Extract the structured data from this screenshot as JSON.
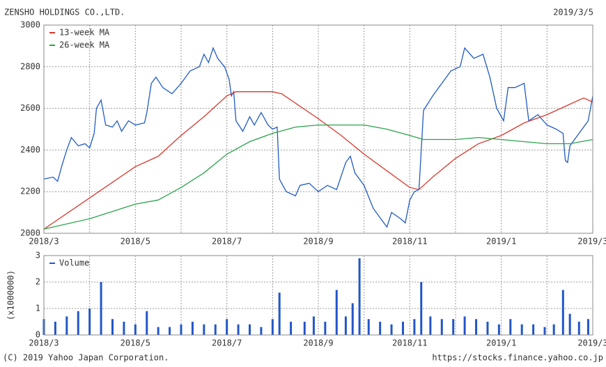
{
  "chart_data": [
    {
      "type": "line",
      "title": "ZENSHO HOLDINGS CO.,LTD.",
      "date": "2019/3/5",
      "xlim": [
        0,
        12
      ],
      "xticks": [
        {
          "value": 0,
          "label": "2018/3"
        },
        {
          "value": 2,
          "label": "2018/5"
        },
        {
          "value": 4,
          "label": "2018/7"
        },
        {
          "value": 6,
          "label": "2018/9"
        },
        {
          "value": 8,
          "label": "2018/11"
        },
        {
          "value": 10,
          "label": "2019/1"
        },
        {
          "value": 12,
          "label": "2019/3"
        }
      ],
      "ylim": [
        2000,
        3000
      ],
      "yticks": [
        2000,
        2200,
        2400,
        2600,
        2800,
        3000
      ],
      "grid": true,
      "legend": "top-left",
      "series": [
        {
          "color": "#1f5bc0",
          "x": [
            0,
            0.2,
            0.3,
            0.4,
            0.5,
            0.6,
            0.75,
            0.9,
            1.0,
            1.1,
            1.15,
            1.25,
            1.35,
            1.5,
            1.6,
            1.7,
            1.85,
            2.0,
            2.2,
            2.25,
            2.35,
            2.45,
            2.6,
            2.8,
            3.0,
            3.2,
            3.4,
            3.5,
            3.6,
            3.7,
            3.8,
            3.95,
            4.05,
            4.1,
            4.15,
            4.2,
            4.35,
            4.5,
            4.6,
            4.75,
            4.9,
            5.0,
            5.1,
            5.15,
            5.3,
            5.5,
            5.6,
            5.8,
            6.0,
            6.2,
            6.4,
            6.6,
            6.7,
            6.8,
            7.0,
            7.2,
            7.4,
            7.5,
            7.6,
            7.8,
            7.9,
            8.0,
            8.1,
            8.2,
            8.3,
            8.5,
            8.7,
            8.9,
            9.1,
            9.2,
            9.4,
            9.6,
            9.75,
            9.9,
            10.05,
            10.15,
            10.3,
            10.5,
            10.6,
            10.8,
            11.0,
            11.2,
            11.35,
            11.4,
            11.45,
            11.5,
            11.7,
            11.9,
            12.0
          ],
          "values": [
            2260,
            2270,
            2250,
            2330,
            2400,
            2460,
            2420,
            2430,
            2410,
            2480,
            2600,
            2640,
            2520,
            2510,
            2540,
            2490,
            2540,
            2520,
            2530,
            2580,
            2720,
            2750,
            2700,
            2670,
            2720,
            2780,
            2800,
            2860,
            2820,
            2890,
            2840,
            2800,
            2740,
            2660,
            2680,
            2540,
            2490,
            2560,
            2520,
            2580,
            2520,
            2500,
            2510,
            2260,
            2200,
            2180,
            2230,
            2240,
            2200,
            2230,
            2210,
            2340,
            2370,
            2290,
            2230,
            2120,
            2060,
            2030,
            2100,
            2070,
            2050,
            2160,
            2200,
            2210,
            2590,
            2660,
            2720,
            2780,
            2800,
            2890,
            2840,
            2860,
            2750,
            2600,
            2540,
            2700,
            2700,
            2720,
            2540,
            2570,
            2520,
            2500,
            2480,
            2350,
            2340,
            2420,
            2480,
            2540,
            2660
          ]
        },
        {
          "name": "13-week MA",
          "color": "#d8372c",
          "x": [
            0,
            1,
            2,
            2.5,
            3,
            3.5,
            4,
            4.2,
            5,
            5.2,
            6,
            6.5,
            7,
            7.5,
            8,
            8.2,
            8.5,
            9,
            9.5,
            10,
            10.5,
            11,
            11.5,
            11.8,
            12
          ],
          "values": [
            2020,
            2170,
            2320,
            2370,
            2470,
            2560,
            2660,
            2680,
            2680,
            2670,
            2550,
            2470,
            2380,
            2300,
            2220,
            2210,
            2270,
            2360,
            2430,
            2470,
            2530,
            2570,
            2620,
            2650,
            2630
          ]
        },
        {
          "name": "26-week MA",
          "color": "#2ba24c",
          "x": [
            0,
            1,
            2,
            2.5,
            3,
            3.5,
            4,
            4.5,
            5,
            5.5,
            6,
            7,
            7.5,
            8,
            8.3,
            9,
            9.5,
            10,
            11,
            11.5,
            12
          ],
          "values": [
            2020,
            2070,
            2140,
            2160,
            2220,
            2290,
            2380,
            2440,
            2480,
            2510,
            2520,
            2520,
            2500,
            2470,
            2450,
            2450,
            2460,
            2450,
            2430,
            2430,
            2450
          ]
        }
      ]
    },
    {
      "type": "bar",
      "ylabel": "(x1000000)",
      "xlim": [
        0,
        12
      ],
      "xticks": [
        {
          "value": 0,
          "label": "2018/3"
        },
        {
          "value": 2,
          "label": "2018/5"
        },
        {
          "value": 4,
          "label": "2018/7"
        },
        {
          "value": 6,
          "label": "2018/9"
        },
        {
          "value": 8,
          "label": "2018/11"
        },
        {
          "value": 10,
          "label": "2019/1"
        },
        {
          "value": 12,
          "label": "2019/3"
        }
      ],
      "ylim": [
        0,
        3
      ],
      "yticks": [
        0,
        1,
        2,
        3
      ],
      "grid": true,
      "legend": "top-left",
      "series": [
        {
          "name": "Volume",
          "color": "#2256c8",
          "x": [
            0,
            0.25,
            0.5,
            0.75,
            1.0,
            1.25,
            1.5,
            1.75,
            2.0,
            2.25,
            2.5,
            2.75,
            3.0,
            3.25,
            3.5,
            3.75,
            4.0,
            4.25,
            4.5,
            4.75,
            5.0,
            5.15,
            5.4,
            5.7,
            5.9,
            6.15,
            6.4,
            6.6,
            6.75,
            6.9,
            7.1,
            7.35,
            7.6,
            7.85,
            8.1,
            8.25,
            8.45,
            8.7,
            8.95,
            9.2,
            9.45,
            9.7,
            9.95,
            10.2,
            10.45,
            10.7,
            10.95,
            11.15,
            11.35,
            11.5,
            11.7,
            11.9
          ],
          "values": [
            0.6,
            0.5,
            0.7,
            0.9,
            1.0,
            2.0,
            0.6,
            0.5,
            0.4,
            0.9,
            0.3,
            0.3,
            0.4,
            0.5,
            0.4,
            0.4,
            0.6,
            0.4,
            0.4,
            0.3,
            0.6,
            1.6,
            0.5,
            0.5,
            0.7,
            0.5,
            1.7,
            0.7,
            1.2,
            2.9,
            0.6,
            0.5,
            0.4,
            0.5,
            0.6,
            2.0,
            0.7,
            0.6,
            0.6,
            0.7,
            0.6,
            0.5,
            0.4,
            0.6,
            0.4,
            0.4,
            0.3,
            0.4,
            1.7,
            0.8,
            0.5,
            0.6
          ]
        }
      ]
    }
  ],
  "footer": {
    "copyright": "(C) 2019 Yahoo Japan Corporation.",
    "url": "https://stocks.finance.yahoo.co.jp"
  }
}
